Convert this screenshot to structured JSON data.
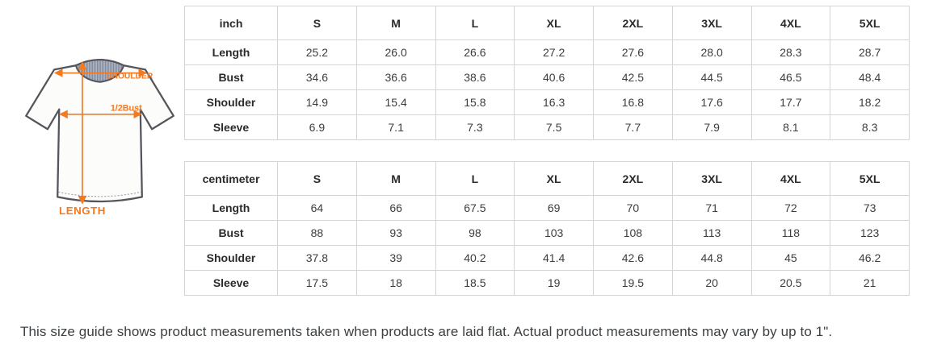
{
  "diagram": {
    "shoulder_label": "SHOULDER",
    "half_bust_label": "1/2Bust",
    "length_label": "LENGTH",
    "accent_color": "#f4791f",
    "outline_color": "#54555c",
    "collar_color": "#9aa2b3"
  },
  "tables": [
    {
      "unit": "inch",
      "sizes": [
        "S",
        "M",
        "L",
        "XL",
        "2XL",
        "3XL",
        "4XL",
        "5XL"
      ],
      "rows": [
        {
          "label": "Length",
          "values": [
            "25.2",
            "26.0",
            "26.6",
            "27.2",
            "27.6",
            "28.0",
            "28.3",
            "28.7"
          ]
        },
        {
          "label": "Bust",
          "values": [
            "34.6",
            "36.6",
            "38.6",
            "40.6",
            "42.5",
            "44.5",
            "46.5",
            "48.4"
          ]
        },
        {
          "label": "Shoulder",
          "values": [
            "14.9",
            "15.4",
            "15.8",
            "16.3",
            "16.8",
            "17.6",
            "17.7",
            "18.2"
          ]
        },
        {
          "label": "Sleeve",
          "values": [
            "6.9",
            "7.1",
            "7.3",
            "7.5",
            "7.7",
            "7.9",
            "8.1",
            "8.3"
          ]
        }
      ]
    },
    {
      "unit": "centimeter",
      "sizes": [
        "S",
        "M",
        "L",
        "XL",
        "2XL",
        "3XL",
        "4XL",
        "5XL"
      ],
      "rows": [
        {
          "label": "Length",
          "values": [
            "64",
            "66",
            "67.5",
            "69",
            "70",
            "71",
            "72",
            "73"
          ]
        },
        {
          "label": "Bust",
          "values": [
            "88",
            "93",
            "98",
            "103",
            "108",
            "113",
            "118",
            "123"
          ]
        },
        {
          "label": "Shoulder",
          "values": [
            "37.8",
            "39",
            "40.2",
            "41.4",
            "42.6",
            "44.8",
            "45",
            "46.2"
          ]
        },
        {
          "label": "Sleeve",
          "values": [
            "17.5",
            "18",
            "18.5",
            "19",
            "19.5",
            "20",
            "20.5",
            "21"
          ]
        }
      ]
    }
  ],
  "note": "This size guide shows product measurements taken when products are laid flat. Actual product measurements may vary by up to 1\"."
}
